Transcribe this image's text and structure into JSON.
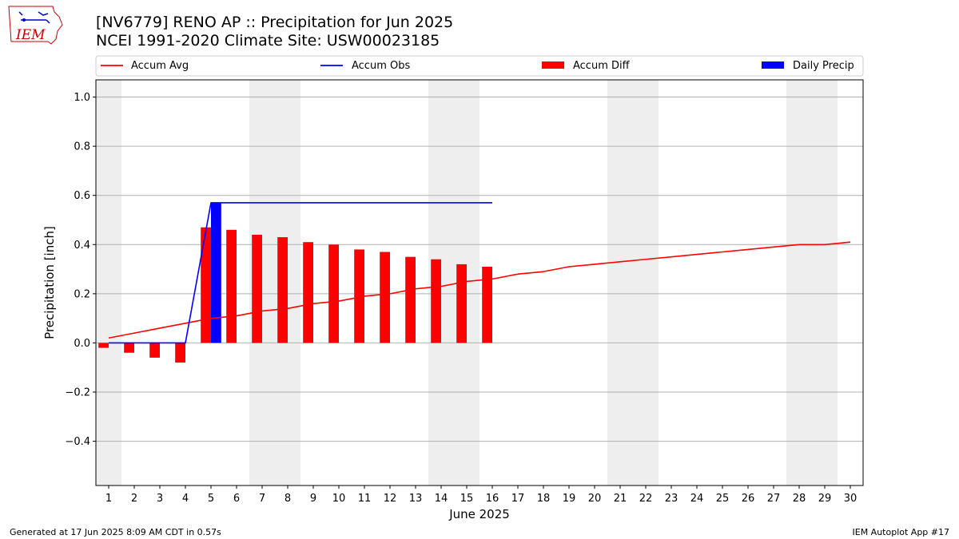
{
  "header": {
    "title_line1": "[NV6779] RENO AP :: Precipitation for Jun 2025",
    "title_line2": "NCEI 1991-2020 Climate Site: USW00023185",
    "logo_text": "IEM"
  },
  "footer": {
    "left": "Generated at 17 Jun 2025 8:09 AM CDT in 0.57s",
    "right": "IEM Autoplot App #17"
  },
  "colors": {
    "avg": "#ff0000",
    "obs": "#0000ff",
    "diff": "#ff0000",
    "daily": "#0000ff",
    "weekend_band": "#eeeeee",
    "grid": "#b0b0b0"
  },
  "chart_data": {
    "type": "bar",
    "xlabel": "June 2025",
    "ylabel": "Precipitation [inch]",
    "xlim": [
      0.5,
      30.5
    ],
    "ylim": [
      -0.58,
      1.07
    ],
    "yticks": [
      -0.4,
      -0.2,
      0.0,
      0.2,
      0.4,
      0.6,
      0.8,
      1.0
    ],
    "ytick_labels": [
      "−0.4",
      "−0.2",
      "0.0",
      "0.2",
      "0.4",
      "0.6",
      "0.8",
      "1.0"
    ],
    "days": [
      1,
      2,
      3,
      4,
      5,
      6,
      7,
      8,
      9,
      10,
      11,
      12,
      13,
      14,
      15,
      16,
      17,
      18,
      19,
      20,
      21,
      22,
      23,
      24,
      25,
      26,
      27,
      28,
      29,
      30
    ],
    "grid": "horizontal",
    "legend_position": "top",
    "weekend_bands": [
      [
        0.5,
        1.5
      ],
      [
        6.5,
        8.5
      ],
      [
        13.5,
        15.5
      ],
      [
        20.5,
        22.5
      ],
      [
        27.5,
        29.5
      ]
    ],
    "series": [
      {
        "name": "Accum Avg",
        "kind": "line",
        "x": [
          1,
          2,
          3,
          4,
          5,
          6,
          7,
          8,
          9,
          10,
          11,
          12,
          13,
          14,
          15,
          16,
          17,
          18,
          19,
          20,
          21,
          22,
          23,
          24,
          25,
          26,
          27,
          28,
          29,
          30
        ],
        "values": [
          0.02,
          0.04,
          0.06,
          0.08,
          0.1,
          0.11,
          0.13,
          0.14,
          0.16,
          0.17,
          0.19,
          0.2,
          0.22,
          0.23,
          0.25,
          0.26,
          0.28,
          0.29,
          0.31,
          0.32,
          0.33,
          0.34,
          0.35,
          0.36,
          0.37,
          0.38,
          0.39,
          0.4,
          0.4,
          0.41
        ]
      },
      {
        "name": "Accum Obs",
        "kind": "line",
        "x": [
          1,
          2,
          3,
          4,
          5,
          6,
          7,
          8,
          9,
          10,
          11,
          12,
          13,
          14,
          15,
          16
        ],
        "values": [
          0,
          0,
          0,
          0,
          0.57,
          0.57,
          0.57,
          0.57,
          0.57,
          0.57,
          0.57,
          0.57,
          0.57,
          0.57,
          0.57,
          0.57
        ]
      },
      {
        "name": "Accum Diff",
        "kind": "bar",
        "x": [
          1,
          2,
          3,
          4,
          5,
          6,
          7,
          8,
          9,
          10,
          11,
          12,
          13,
          14,
          15,
          16
        ],
        "values": [
          -0.02,
          -0.04,
          -0.06,
          -0.08,
          0.47,
          0.46,
          0.44,
          0.43,
          0.41,
          0.4,
          0.38,
          0.37,
          0.35,
          0.34,
          0.32,
          0.31
        ]
      },
      {
        "name": "Daily Precip",
        "kind": "bar",
        "x": [
          5
        ],
        "values": [
          0.57
        ]
      }
    ]
  }
}
